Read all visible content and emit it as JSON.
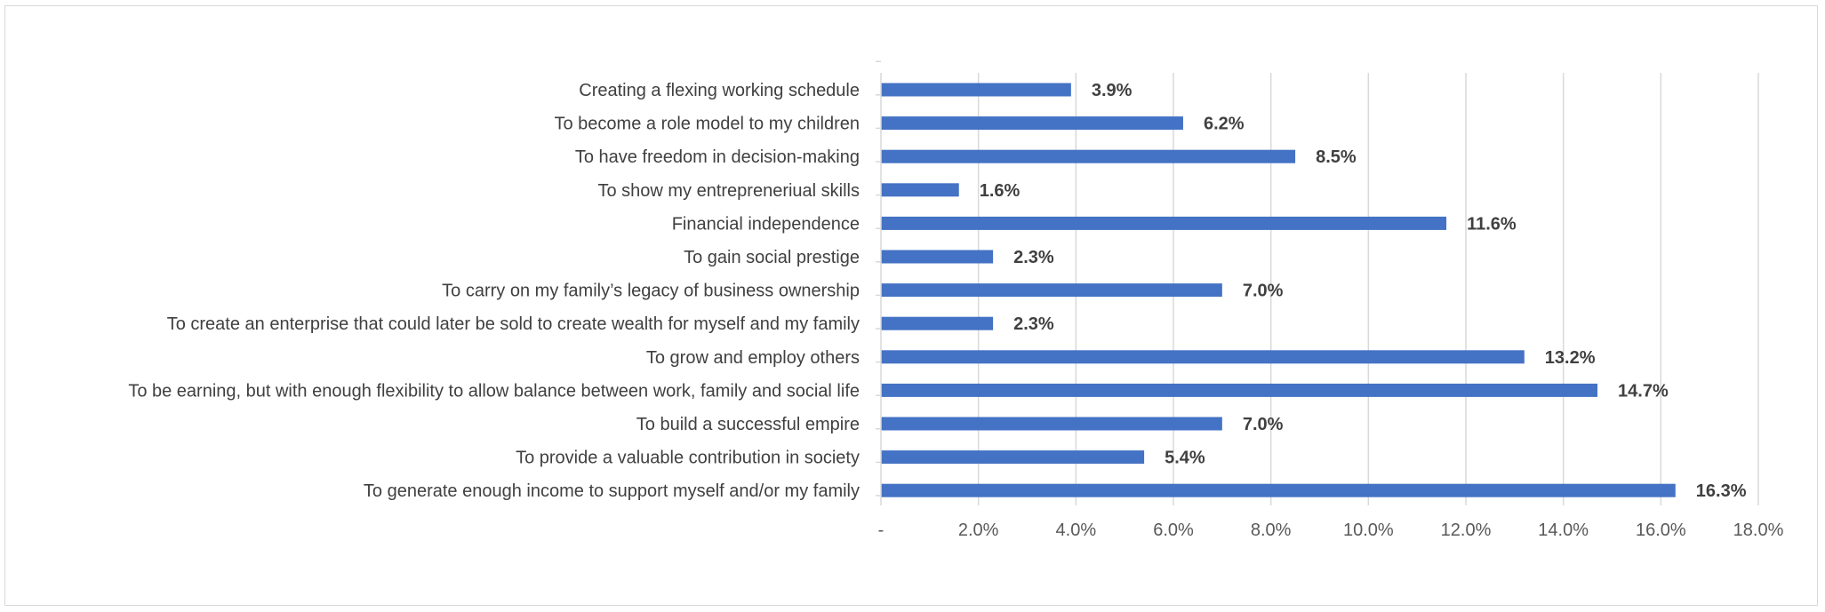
{
  "chart_data": {
    "type": "bar",
    "orientation": "horizontal",
    "categories": [
      "Creating a flexing working schedule",
      "To become a role model to my children",
      "To have freedom in decision-making",
      "To show my entrepreneriual skills",
      "Financial independence",
      "To gain social prestige",
      "To carry on my family’s legacy of business ownership",
      "To create an enterprise that could later be sold to create wealth for myself and my family",
      "To grow and employ others",
      "To be earning, but with enough flexibility to allow balance between work, family and social life",
      "To build a successful empire",
      "To provide a valuable contribution in society",
      "To generate enough income to support myself and/or my family"
    ],
    "values": [
      3.9,
      6.2,
      8.5,
      1.6,
      11.6,
      2.3,
      7.0,
      2.3,
      13.2,
      14.7,
      7.0,
      5.4,
      16.3
    ],
    "value_labels": [
      "3.9%",
      "6.2%",
      "8.5%",
      "1.6%",
      "11.6%",
      "2.3%",
      "7.0%",
      "2.3%",
      "13.2%",
      "14.7%",
      "7.0%",
      "5.4%",
      "16.3%"
    ],
    "x_ticks": [
      "-",
      "2.0%",
      "4.0%",
      "6.0%",
      "8.0%",
      "10.0%",
      "12.0%",
      "14.0%",
      "16.0%",
      "18.0%"
    ],
    "xlim": [
      0,
      18
    ],
    "title": "",
    "xlabel": "",
    "ylabel": "",
    "grid": "vertical",
    "legend": "none",
    "bar_color": "#4472c4",
    "grid_color": "#d9d9d9",
    "text_color": "#404040"
  }
}
